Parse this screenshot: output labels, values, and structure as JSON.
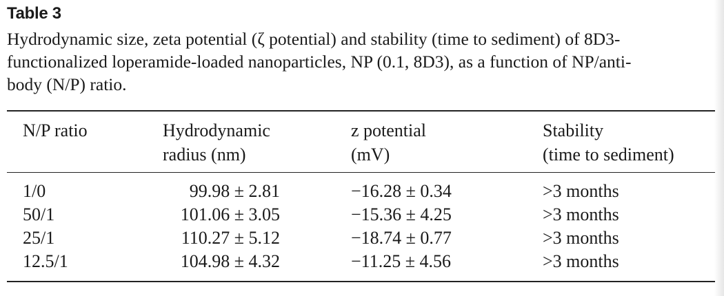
{
  "table": {
    "label": "Table 3",
    "caption_lines": [
      "Hydrodynamic size, zeta potential (ζ potential) and stability (time to sediment) of 8D3-",
      "functionalized loperamide-loaded nanoparticles, NP (0.1, 8D3), as a function of NP/anti-",
      "body (N/P) ratio."
    ],
    "headers": {
      "col1": [
        "N/P ratio"
      ],
      "col2": [
        "Hydrodynamic",
        "radius (nm)"
      ],
      "col3": [
        "z potential",
        "(mV)"
      ],
      "col4": [
        "Stability",
        "(time to sediment)"
      ]
    },
    "rows": [
      {
        "ratio": "1/0",
        "radius": "99.98 ± 2.81",
        "zeta": "−16.28 ± 0.34",
        "stability": ">3 months"
      },
      {
        "ratio": "50/1",
        "radius": "101.06 ± 3.05",
        "zeta": "−15.36 ± 4.25",
        "stability": ">3 months"
      },
      {
        "ratio": "25/1",
        "radius": "110.27 ± 5.12",
        "zeta": "−18.74 ± 0.77",
        "stability": ">3 months"
      },
      {
        "ratio": "12.5/1",
        "radius": "104.98 ± 4.32",
        "zeta": "−11.25 ± 4.56",
        "stability": ">3 months"
      }
    ]
  }
}
